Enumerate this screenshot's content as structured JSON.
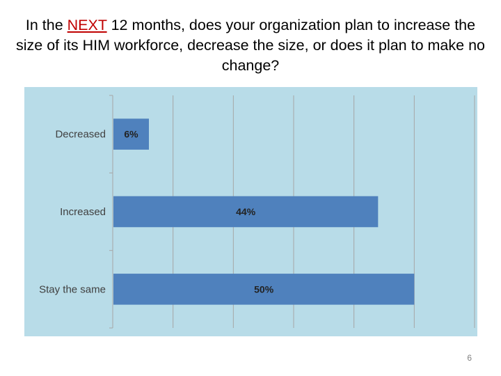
{
  "slide": {
    "title_before": "In the ",
    "title_highlight": "NEXT",
    "title_after": " 12 months, does your organization plan to increase the size of its HIM workforce, decrease the size, or does it plan to make no change?",
    "page_number": "6"
  },
  "colors": {
    "plot_background": "#b8dce8",
    "bar": "#4f81bd",
    "gridline": "#a6a6a6",
    "title_highlight": "#c00000"
  },
  "chart_data": {
    "type": "bar",
    "orientation": "horizontal",
    "categories": [
      "Decreased",
      "Increased",
      "Stay the same"
    ],
    "values": [
      6,
      44,
      50
    ],
    "data_labels": [
      "6%",
      "44%",
      "50%"
    ],
    "xlim": [
      0,
      60
    ],
    "grid": true,
    "legend": "none"
  }
}
